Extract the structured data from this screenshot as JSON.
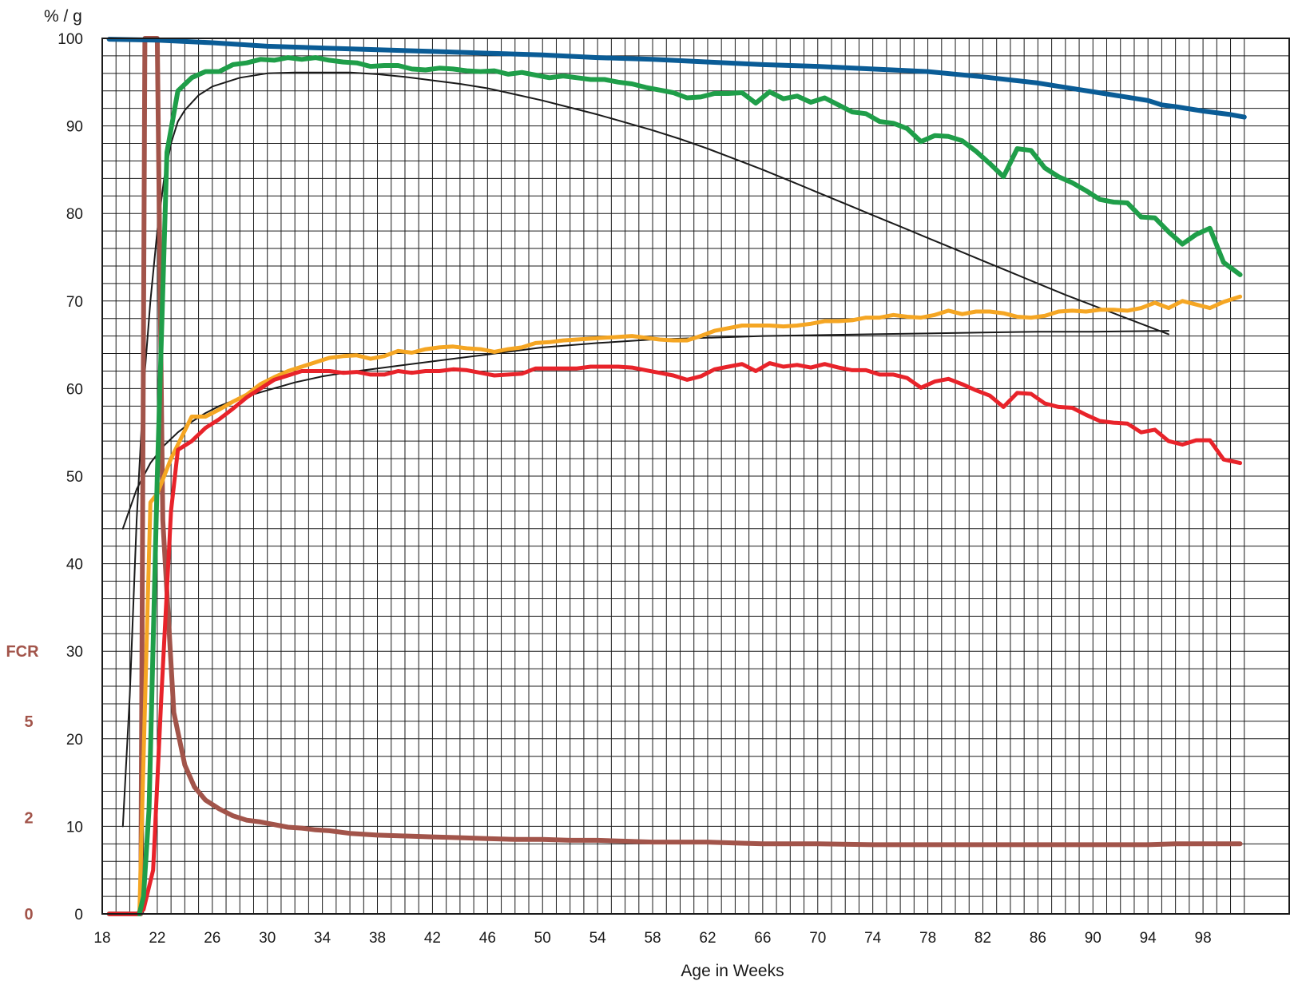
{
  "chart_data": {
    "type": "line",
    "title": "",
    "ylabel": "% / g",
    "xlabel": "Age in Weeks",
    "fcr_label": "FCR",
    "xlim": [
      18,
      101
    ],
    "ylim": [
      0,
      100
    ],
    "fcr_ticks": [
      {
        "label": "0",
        "y": 0
      },
      {
        "label": "2",
        "y": 11
      },
      {
        "label": "5",
        "y": 22
      },
      {
        "label": "FCR",
        "y": 30
      }
    ],
    "x_ticks": [
      18,
      22,
      26,
      30,
      34,
      38,
      42,
      46,
      50,
      54,
      58,
      62,
      66,
      70,
      74,
      78,
      82,
      86,
      90,
      94,
      98
    ],
    "y_ticks": [
      0,
      10,
      20,
      30,
      40,
      50,
      60,
      70,
      80,
      90,
      100
    ],
    "grid": true,
    "colors": {
      "livability": "#0a5c96",
      "production": "#1f9e49",
      "egg_weight": "#f5a623",
      "egg_mass": "#e8232a",
      "fcr": "#a2544a",
      "standard": "#1a1a1a",
      "fcr_label": "#a2544a",
      "grid": "#1a1a1a"
    },
    "series": [
      {
        "key": "livability",
        "width": 6,
        "x": [
          18.5,
          22,
          26,
          30,
          34,
          38,
          42,
          46,
          50,
          54,
          58,
          62,
          66,
          70,
          74,
          78,
          82,
          86,
          88,
          90,
          92,
          94,
          95,
          96,
          98,
          100,
          101
        ],
        "y": [
          99.9,
          99.8,
          99.5,
          99.1,
          98.9,
          98.7,
          98.5,
          98.3,
          98.1,
          97.8,
          97.6,
          97.3,
          97.0,
          96.8,
          96.5,
          96.2,
          95.6,
          94.9,
          94.4,
          93.9,
          93.4,
          92.9,
          92.4,
          92.2,
          91.7,
          91.3,
          91.0
        ]
      },
      {
        "key": "production",
        "width": 6,
        "x": [
          20.7,
          21,
          21.4,
          22,
          22.7,
          23.5,
          24.5,
          25.5,
          26.5,
          27.5,
          28.5,
          29.5,
          30.5,
          31.5,
          32.5,
          33.5,
          34.5,
          35.5,
          36.5,
          37.5,
          38.5,
          39.5,
          40.5,
          41.5,
          42.5,
          43.5,
          44.5,
          45.5,
          46.5,
          47.5,
          48.5,
          49.5,
          50.5,
          51.5,
          52.5,
          53.5,
          54.5,
          55.5,
          56.5,
          57.5,
          58.5,
          59.5,
          60.5,
          61.5,
          62.5,
          63.5,
          64.5,
          65.5,
          66.5,
          67.5,
          68.5,
          69.5,
          70.5,
          71.5,
          72.5,
          73.5,
          74.5,
          75.5,
          76.5,
          77.5,
          78.5,
          79.5,
          80.5,
          81.5,
          82.5,
          83.5,
          84.5,
          85.5,
          86.5,
          87.5,
          88.5,
          89.5,
          90.5,
          91.5,
          92.5,
          93.5,
          94.5,
          95.5,
          96.5,
          97.5,
          98.5,
          99.5,
          100.7
        ],
        "y": [
          0,
          2,
          12,
          50,
          87,
          94,
          95.5,
          96.2,
          96.2,
          97,
          97.2,
          97.6,
          97.5,
          97.8,
          97.6,
          97.8,
          97.5,
          97.3,
          97.2,
          96.8,
          96.9,
          96.9,
          96.5,
          96.4,
          96.6,
          96.5,
          96.3,
          96.2,
          96.3,
          95.9,
          96.1,
          95.8,
          95.5,
          95.7,
          95.5,
          95.3,
          95.3,
          95.0,
          94.8,
          94.4,
          94.1,
          93.8,
          93.2,
          93.3,
          93.7,
          93.7,
          93.8,
          92.6,
          93.9,
          93.1,
          93.4,
          92.7,
          93.2,
          92.4,
          91.6,
          91.4,
          90.5,
          90.3,
          89.7,
          88.2,
          88.9,
          88.8,
          88.3,
          87.1,
          85.7,
          84.2,
          87.4,
          87.2,
          85.2,
          84.2,
          83.5,
          82.6,
          81.6,
          81.3,
          81.2,
          79.6,
          79.5,
          77.9,
          76.5,
          77.6,
          78.3,
          74.4,
          73.0
        ]
      },
      {
        "key": "egg_weight",
        "width": 5,
        "x": [
          20.7,
          21.5,
          22,
          23,
          24.5,
          25.5,
          26.5,
          27.5,
          28.5,
          29.5,
          30.5,
          31.5,
          32.5,
          33.5,
          34.5,
          35.5,
          36.5,
          37.5,
          38.5,
          39.5,
          40.5,
          41.5,
          42.5,
          43.5,
          44.5,
          45.5,
          46.5,
          47.5,
          48.5,
          49.5,
          50.5,
          51.5,
          52.5,
          53.5,
          54.5,
          55.5,
          56.5,
          57.5,
          58.5,
          59.5,
          60.5,
          61.5,
          62.5,
          63.5,
          64.5,
          65.5,
          66.5,
          67.5,
          68.5,
          69.5,
          70.5,
          71.5,
          72.5,
          73.5,
          74.5,
          75.5,
          76.5,
          77.5,
          78.5,
          79.5,
          80.5,
          81.5,
          82.5,
          83.5,
          84.5,
          85.5,
          86.5,
          87.5,
          88.5,
          89.5,
          90.5,
          91.5,
          92.5,
          93.5,
          94.5,
          95.5,
          96.5,
          97.5,
          98.5,
          99.5,
          100.7
        ],
        "y": [
          0,
          47,
          48,
          52,
          56.8,
          56.8,
          57.6,
          58.5,
          59.3,
          60.5,
          61.3,
          62,
          62.5,
          63,
          63.5,
          63.7,
          63.8,
          63.4,
          63.7,
          64.3,
          64.1,
          64.5,
          64.7,
          64.8,
          64.6,
          64.5,
          64.2,
          64.5,
          64.7,
          65.2,
          65.3,
          65.5,
          65.6,
          65.7,
          65.8,
          65.9,
          66,
          65.8,
          65.6,
          65.5,
          65.5,
          66,
          66.6,
          66.9,
          67.2,
          67.2,
          67.2,
          67.1,
          67.2,
          67.4,
          67.7,
          67.7,
          67.8,
          68.1,
          68.1,
          68.4,
          68.2,
          68.1,
          68.4,
          68.9,
          68.5,
          68.8,
          68.8,
          68.6,
          68.2,
          68.1,
          68.3,
          68.8,
          68.9,
          68.8,
          69.0,
          69.0,
          68.9,
          69.2,
          69.8,
          69.2,
          70.0,
          69.6,
          69.2,
          69.9,
          70.5
        ]
      },
      {
        "key": "egg_mass",
        "width": 5,
        "x": [
          18.5,
          20.5,
          21,
          21.7,
          22.3,
          23,
          23.5,
          24.5,
          25.5,
          26.5,
          27.5,
          28.5,
          29.5,
          30.5,
          31.5,
          32.5,
          33.5,
          34.5,
          35.5,
          36.5,
          37.5,
          38.5,
          39.5,
          40.5,
          41.5,
          42.5,
          43.5,
          44.5,
          45.5,
          46.5,
          47.5,
          48.5,
          49.5,
          50.5,
          51.5,
          52.5,
          53.5,
          54.5,
          55.5,
          56.5,
          57.5,
          58.5,
          59.5,
          60.5,
          61.5,
          62.5,
          63.5,
          64.5,
          65.5,
          66.5,
          67.5,
          68.5,
          69.5,
          70.5,
          71.5,
          72.5,
          73.5,
          74.5,
          75.5,
          76.5,
          77.5,
          78.5,
          79.5,
          80.5,
          81.5,
          82.5,
          83.5,
          84.5,
          85.5,
          86.5,
          87.5,
          88.5,
          89.5,
          90.5,
          91.5,
          92.5,
          93.5,
          94.5,
          95.5,
          96.5,
          97.5,
          98.5,
          99.5,
          100.7
        ],
        "y": [
          0,
          0,
          0.5,
          5,
          25,
          46,
          53,
          54,
          55.5,
          56.5,
          57.7,
          59,
          60,
          61,
          61.5,
          62,
          62,
          62,
          61.8,
          61.9,
          61.6,
          61.6,
          62,
          61.8,
          62,
          62,
          62.2,
          62.1,
          61.8,
          61.5,
          61.6,
          61.7,
          62.3,
          62.3,
          62.3,
          62.3,
          62.5,
          62.5,
          62.5,
          62.4,
          62.1,
          61.8,
          61.5,
          61,
          61.4,
          62.2,
          62.5,
          62.8,
          62.0,
          62.9,
          62.5,
          62.7,
          62.4,
          62.8,
          62.4,
          62.1,
          62.1,
          61.6,
          61.6,
          61.2,
          60.1,
          60.8,
          61.1,
          60.5,
          59.8,
          59.2,
          57.9,
          59.5,
          59.4,
          58.3,
          57.9,
          57.8,
          57.0,
          56.3,
          56.1,
          56.0,
          55.0,
          55.3,
          54.0,
          53.6,
          54.1,
          54.1,
          51.9,
          51.5
        ]
      },
      {
        "key": "fcr",
        "width": 6,
        "x": [
          18.5,
          20.5,
          20.8,
          21.1,
          21.3,
          22,
          22.4,
          23.2,
          24,
          24.7,
          25.5,
          26.5,
          27.5,
          28.5,
          29.5,
          30.5,
          31.5,
          32.5,
          33.5,
          34.5,
          36,
          38,
          40,
          42,
          44,
          46,
          48,
          50,
          52,
          54,
          56,
          58,
          60,
          62,
          64,
          66,
          68,
          70,
          74,
          78,
          82,
          86,
          90,
          94,
          96,
          100.7
        ],
        "y": [
          0,
          0,
          0,
          100,
          100,
          100,
          45,
          23,
          17,
          14.5,
          13,
          12,
          11.2,
          10.7,
          10.5,
          10.2,
          9.9,
          9.8,
          9.6,
          9.5,
          9.2,
          9.0,
          8.9,
          8.8,
          8.7,
          8.6,
          8.5,
          8.5,
          8.4,
          8.4,
          8.3,
          8.2,
          8.2,
          8.2,
          8.1,
          8.0,
          8.0,
          8.0,
          7.9,
          7.9,
          7.9,
          7.9,
          7.9,
          7.9,
          8.0,
          8.0
        ]
      },
      {
        "key": "standard_production",
        "width": 2,
        "x": [
          19.5,
          20,
          20.5,
          21,
          21.5,
          22,
          22.5,
          23,
          23.5,
          24,
          25,
          26,
          28,
          30,
          32,
          34,
          36,
          38,
          40,
          42,
          44,
          46,
          48,
          50,
          52,
          54,
          56,
          58,
          60,
          62,
          64,
          66,
          68,
          70,
          72,
          74,
          76,
          78,
          80,
          82,
          84,
          86,
          88,
          90,
          92,
          94,
          95.5
        ],
        "y": [
          10,
          25,
          45,
          60,
          70,
          78,
          84,
          88,
          90.5,
          91.8,
          93.5,
          94.5,
          95.5,
          96.0,
          96.1,
          96.1,
          96.1,
          95.9,
          95.6,
          95.2,
          94.8,
          94.3,
          93.6,
          92.9,
          92.1,
          91.3,
          90.4,
          89.5,
          88.5,
          87.4,
          86.2,
          85.0,
          83.7,
          82.4,
          81.1,
          79.8,
          78.5,
          77.2,
          75.9,
          74.6,
          73.3,
          72.0,
          70.7,
          69.5,
          68.3,
          67.1,
          66.2
        ]
      },
      {
        "key": "standard_egg_weight",
        "width": 2,
        "x": [
          19.5,
          20.5,
          21.5,
          22.5,
          23.5,
          24.5,
          25.5,
          26.5,
          28,
          30,
          32,
          34,
          36,
          38,
          40,
          42,
          44,
          46,
          48,
          50,
          54,
          58,
          62,
          66,
          70,
          74,
          78,
          82,
          86,
          90,
          95.5
        ],
        "y": [
          44,
          48.5,
          51.5,
          53.5,
          55,
          56.2,
          57.2,
          58.0,
          58.9,
          59.8,
          60.7,
          61.4,
          61.9,
          62.3,
          62.7,
          63.1,
          63.5,
          63.9,
          64.3,
          64.7,
          65.2,
          65.6,
          65.8,
          66.0,
          66.1,
          66.2,
          66.3,
          66.4,
          66.5,
          66.5,
          66.6
        ]
      }
    ]
  }
}
